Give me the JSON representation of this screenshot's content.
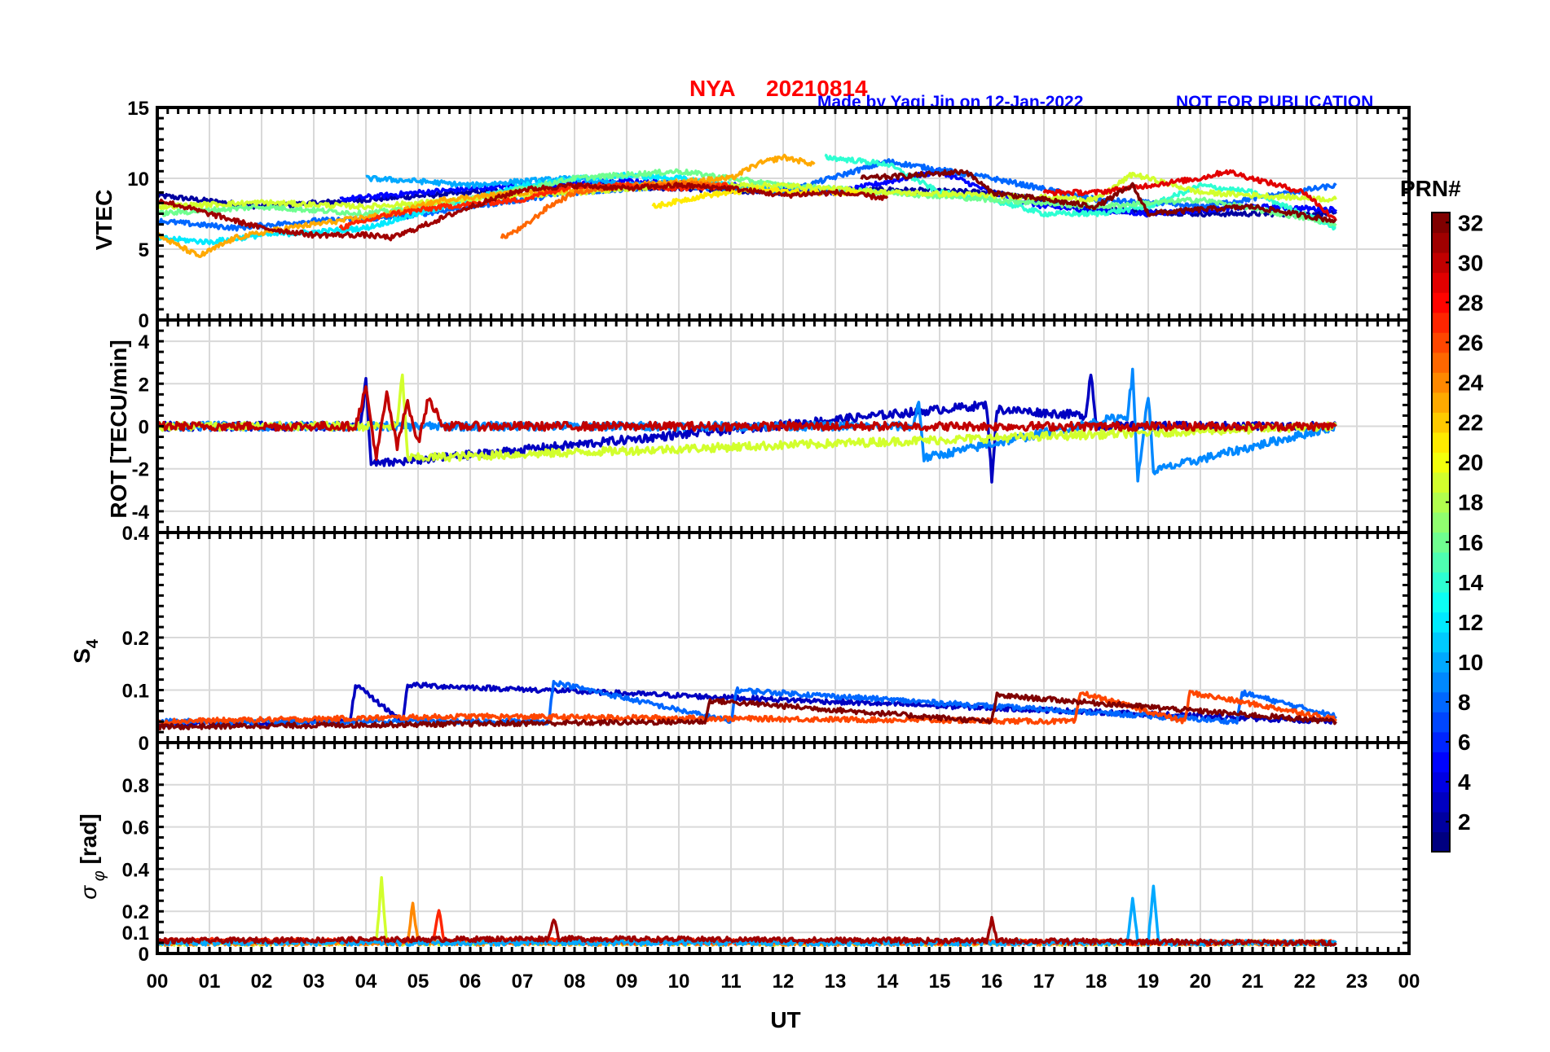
{
  "header": {
    "title_station": "NYA",
    "title_date": "20210814",
    "credit": "Made by Yaqi Jin on 12-Jan-2022",
    "notice": "NOT FOR PUBLICATION"
  },
  "colorbar": {
    "label": "PRN#",
    "ticks": [
      "2",
      "4",
      "6",
      "8",
      "10",
      "12",
      "14",
      "16",
      "18",
      "20",
      "22",
      "24",
      "26",
      "28",
      "30",
      "32"
    ],
    "range": [
      1,
      32
    ],
    "colormap": "jet"
  },
  "x_axis": {
    "label": "UT",
    "ticks": [
      "00",
      "01",
      "02",
      "03",
      "04",
      "05",
      "06",
      "07",
      "08",
      "09",
      "10",
      "11",
      "12",
      "13",
      "14",
      "15",
      "16",
      "17",
      "18",
      "19",
      "20",
      "21",
      "22",
      "23",
      "00"
    ],
    "range_hours": [
      0,
      24
    ],
    "data_end_hour": 22.6
  },
  "chart_data": [
    {
      "type": "line",
      "panel": "VTEC",
      "ylabel": "VTEC",
      "ylim": [
        0,
        15
      ],
      "yticks": [
        "0",
        "5",
        "10",
        "15"
      ],
      "grid": true,
      "series": [
        {
          "prn": 2,
          "x": [
            0,
            2,
            4,
            6,
            8,
            10,
            12,
            14,
            16,
            18,
            20,
            22.6
          ],
          "values": [
            8.8,
            8.0,
            8.5,
            9.0,
            9.5,
            9.3,
            9.0,
            9.2,
            9.0,
            7.8,
            7.5,
            7.5
          ]
        },
        {
          "prn": 5,
          "x": [
            3.5,
            5,
            7,
            9,
            11,
            13,
            15,
            16,
            17,
            19,
            21,
            22.6
          ],
          "values": [
            8.5,
            9.0,
            9.5,
            9.8,
            9.5,
            9.0,
            10.5,
            9.0,
            8.0,
            7.5,
            8.0,
            7.8
          ]
        },
        {
          "prn": 8,
          "x": [
            0,
            1.5,
            3,
            4.5,
            6,
            8,
            10,
            12,
            14,
            16,
            18,
            20,
            22.6
          ],
          "values": [
            7.0,
            6.5,
            7.0,
            7.2,
            8.0,
            9.0,
            9.5,
            9.0,
            11.2,
            10.0,
            8.5,
            8.0,
            9.5
          ]
        },
        {
          "prn": 10,
          "x": [
            4,
            5,
            6,
            7,
            8,
            9,
            10,
            11,
            12
          ],
          "values": [
            10.0,
            9.8,
            9.5,
            9.8,
            10.0,
            9.5,
            9.7,
            9.5,
            9.2
          ]
        },
        {
          "prn": 12,
          "x": [
            0,
            1,
            2,
            3,
            4,
            5,
            6,
            7,
            8,
            9,
            10,
            11
          ],
          "values": [
            5.8,
            5.5,
            6.0,
            6.2,
            6.5,
            7.5,
            8.5,
            9.5,
            10.0,
            10.2,
            10.0,
            9.5
          ]
        },
        {
          "prn": 14,
          "x": [
            12.8,
            14,
            15,
            16,
            17,
            18,
            19,
            20,
            21,
            22.6
          ],
          "values": [
            11.5,
            11.0,
            9.0,
            8.5,
            7.5,
            7.5,
            8.0,
            9.5,
            9.0,
            6.5
          ]
        },
        {
          "prn": 16,
          "x": [
            0,
            2,
            4,
            6,
            8,
            10,
            12,
            14,
            16,
            18,
            20,
            22.6
          ],
          "values": [
            7.5,
            8.0,
            7.5,
            8.5,
            10.0,
            10.5,
            9.5,
            9.0,
            8.5,
            8.0,
            8.5,
            6.8
          ]
        },
        {
          "prn": 19,
          "x": [
            0,
            2,
            4,
            6,
            8,
            10,
            12,
            14,
            16,
            18,
            18.7,
            20,
            22.6
          ],
          "values": [
            8.0,
            8.3,
            8.0,
            8.5,
            9.0,
            9.5,
            9.5,
            9.0,
            8.8,
            8.5,
            10.3,
            9.0,
            8.5
          ]
        },
        {
          "prn": 21,
          "x": [
            9.5,
            10.5,
            11.5,
            12.5,
            13.5
          ],
          "values": [
            8.0,
            8.8,
            9.2,
            9.0,
            9.0
          ]
        },
        {
          "prn": 23,
          "x": [
            0,
            0.8,
            1.5,
            2.5,
            3.5,
            4.5,
            5.5,
            7,
            9,
            11,
            11.5,
            12,
            12.6
          ],
          "values": [
            6.0,
            4.5,
            5.8,
            6.5,
            7.0,
            7.5,
            8.5,
            9.0,
            9.5,
            10.0,
            11.0,
            11.5,
            11.0
          ]
        },
        {
          "prn": 25,
          "x": [
            6.6,
            7,
            7.5,
            8,
            9,
            10,
            11
          ],
          "values": [
            5.8,
            6.5,
            8.0,
            9.0,
            9.5,
            9.6,
            9.5
          ]
        },
        {
          "prn": 27,
          "x": [
            3.5,
            4.5,
            5.5,
            7,
            8,
            9,
            10,
            11
          ],
          "values": [
            6.5,
            7.5,
            8.0,
            8.5,
            9.5,
            9.5,
            9.3,
            9.5
          ]
        },
        {
          "prn": 29,
          "x": [
            17,
            18,
            19,
            20,
            20.5,
            21,
            22,
            22.6
          ],
          "values": [
            9.0,
            9.0,
            9.5,
            10.0,
            10.5,
            10.0,
            9.0,
            7.0
          ]
        },
        {
          "prn": 31,
          "x": [
            0,
            1,
            2,
            3,
            4,
            4.5,
            5,
            6,
            7,
            8,
            9,
            10,
            11,
            12,
            13,
            14
          ],
          "values": [
            8.5,
            7.5,
            6.5,
            6.0,
            6.0,
            5.8,
            6.5,
            8.0,
            9.2,
            9.5,
            9.3,
            9.5,
            9.3,
            8.8,
            9.0,
            8.6
          ]
        },
        {
          "prn": 32,
          "x": [
            13.5,
            14.5,
            15.5,
            16,
            17,
            18,
            18.7,
            19,
            20,
            21,
            22.6
          ],
          "values": [
            10.0,
            10.2,
            10.5,
            9.0,
            8.5,
            8.0,
            9.5,
            7.5,
            7.8,
            8.0,
            7.0
          ]
        }
      ]
    },
    {
      "type": "line",
      "panel": "ROT",
      "ylabel": "ROT [TECU/min]",
      "ylim": [
        -5,
        5
      ],
      "yticks": [
        "-4",
        "-2",
        "0",
        "2",
        "4"
      ],
      "grid": true,
      "series": [
        {
          "prn": 3,
          "x": [
            0,
            3.9,
            4.0,
            4.1,
            15.9,
            16.0,
            16.1,
            17.8,
            17.9,
            18.0,
            22.6
          ],
          "values": [
            0,
            0,
            2.2,
            -1.8,
            1.0,
            -2.5,
            0.8,
            0.5,
            2.6,
            0,
            0
          ]
        },
        {
          "prn": 9,
          "x": [
            0,
            14.5,
            14.6,
            14.7,
            18.6,
            18.7,
            18.8,
            19.0,
            19.1,
            22.6
          ],
          "values": [
            0,
            0,
            1.2,
            -1.5,
            0.5,
            2.5,
            -2.5,
            1.5,
            -2.1,
            0
          ]
        },
        {
          "prn": 19,
          "x": [
            0,
            4.6,
            4.7,
            4.8,
            22.6
          ],
          "values": [
            0,
            0,
            2.5,
            -1.5,
            0
          ]
        },
        {
          "prn": 30,
          "x": [
            0,
            3.8,
            4.0,
            4.2,
            4.4,
            4.6,
            4.8,
            5.0,
            5.2,
            5.5,
            22.6
          ],
          "values": [
            0,
            0,
            1.8,
            -1.5,
            1.5,
            -1.0,
            1.2,
            -0.8,
            1.3,
            0,
            0
          ]
        }
      ]
    },
    {
      "type": "line",
      "panel": "S4",
      "ylabel": "S4",
      "ylim": [
        0,
        0.4
      ],
      "yticks": [
        "0",
        "0.1",
        "0.2",
        "0.4"
      ],
      "grid": true,
      "series": [
        {
          "prn": 3,
          "x": [
            0,
            3.7,
            3.8,
            4.7,
            4.8,
            22.6
          ],
          "values": [
            0.035,
            0.04,
            0.11,
            0.04,
            0.11,
            0.04
          ]
        },
        {
          "prn": 8,
          "x": [
            0,
            7.5,
            7.6,
            11,
            11.1,
            20.7,
            20.8,
            22.6
          ],
          "values": [
            0.04,
            0.04,
            0.115,
            0.04,
            0.1,
            0.04,
            0.095,
            0.05
          ]
        },
        {
          "prn": 26,
          "x": [
            0,
            6,
            12,
            17.6,
            17.7,
            19.7,
            19.8,
            22.6
          ],
          "values": [
            0.04,
            0.05,
            0.045,
            0.04,
            0.095,
            0.04,
            0.095,
            0.045
          ]
        },
        {
          "prn": 32,
          "x": [
            0,
            10.5,
            10.6,
            16,
            16.1,
            22.6
          ],
          "values": [
            0.03,
            0.04,
            0.08,
            0.04,
            0.09,
            0.04
          ]
        }
      ]
    },
    {
      "type": "line",
      "panel": "sigma_phi",
      "ylabel": "σ φ [rad]",
      "ylim": [
        0,
        1
      ],
      "yticks": [
        "0",
        "0.1",
        "0.2",
        "0.4",
        "0.6",
        "0.8"
      ],
      "grid": true,
      "series": [
        {
          "prn": 19,
          "x": [
            0,
            4.2,
            4.3,
            4.4,
            22.6
          ],
          "values": [
            0.05,
            0.05,
            0.35,
            0.05,
            0.05
          ]
        },
        {
          "prn": 24,
          "x": [
            0,
            4.8,
            4.9,
            5.0,
            22.6
          ],
          "values": [
            0.05,
            0.05,
            0.24,
            0.05,
            0.05
          ]
        },
        {
          "prn": 27,
          "x": [
            0,
            5.3,
            5.4,
            5.5,
            22.6
          ],
          "values": [
            0.06,
            0.06,
            0.21,
            0.06,
            0.05
          ]
        },
        {
          "prn": 10,
          "x": [
            0,
            18.6,
            18.7,
            18.8,
            19.0,
            19.1,
            19.2,
            22.6
          ],
          "values": [
            0.05,
            0.05,
            0.26,
            0.05,
            0.05,
            0.32,
            0.05,
            0.05
          ]
        },
        {
          "prn": 31,
          "x": [
            0,
            7.5,
            7.6,
            7.7,
            15.9,
            16.0,
            16.1,
            22.6
          ],
          "values": [
            0.06,
            0.07,
            0.17,
            0.07,
            0.06,
            0.16,
            0.06,
            0.05
          ]
        }
      ]
    }
  ]
}
